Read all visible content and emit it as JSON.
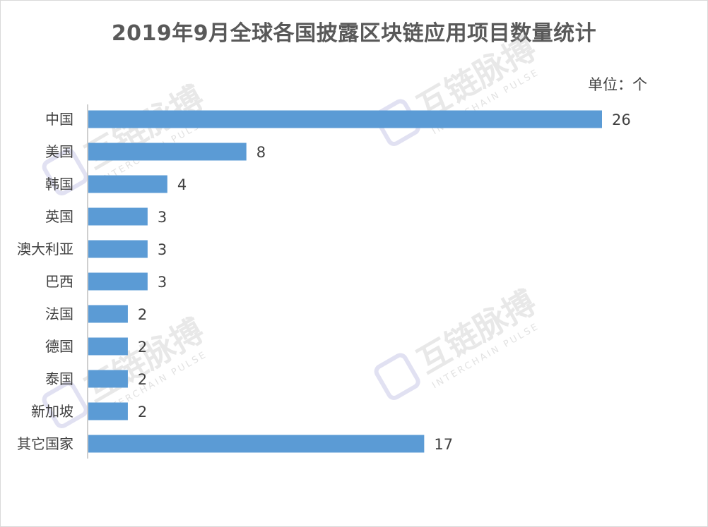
{
  "title": "2019年9月全球各国披露区块链应用项目数量统计",
  "unit_label": "单位：个",
  "watermark": {
    "name": "互链脉搏",
    "sub": "INTERCHAIN PULSE"
  },
  "colors": {
    "bar": "#5b9bd5",
    "axis": "#bfbfbf",
    "text": "#404040",
    "title": "#595959"
  },
  "chart_data": {
    "type": "bar",
    "orientation": "horizontal",
    "title": "2019年9月全球各国披露区块链应用项目数量统计",
    "unit": "单位：个",
    "categories": [
      "中国",
      "美国",
      "韩国",
      "英国",
      "澳大利亚",
      "巴西",
      "法国",
      "德国",
      "泰国",
      "新加坡",
      "其它国家"
    ],
    "values": [
      26,
      8,
      4,
      3,
      3,
      3,
      2,
      2,
      2,
      2,
      17
    ],
    "data_labels": true,
    "xlim": [
      0,
      26
    ],
    "grid": false,
    "legend": "none"
  }
}
